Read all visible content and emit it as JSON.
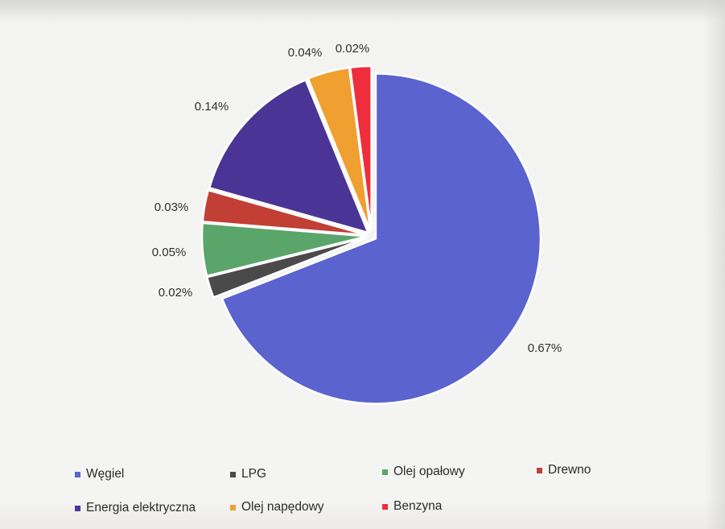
{
  "chart_data": {
    "type": "pie",
    "title": "",
    "categories": [
      "Węgiel",
      "LPG",
      "Olej opałowy",
      "Drewno",
      "Energia elektryczna",
      "Olej napędowy",
      "Benzyna"
    ],
    "values": [
      0.67,
      0.02,
      0.05,
      0.03,
      0.14,
      0.04,
      0.02
    ],
    "data_labels": [
      "0.67%",
      "0.02%",
      "0.05%",
      "0.03%",
      "0.14%",
      "0.04%",
      "0.02%"
    ],
    "colors": [
      "#5b63cf",
      "#4a4a4a",
      "#5aa56a",
      "#c23f35",
      "#4a3596",
      "#f0a030",
      "#ee2e3c"
    ],
    "legend_position": "bottom",
    "start_angle_deg": 90,
    "direction": "clockwise",
    "exploded": true
  },
  "legend": [
    {
      "label": "Węgiel",
      "color": "#5b63cf"
    },
    {
      "label": "LPG",
      "color": "#4a4a4a"
    },
    {
      "label": "Olej opałowy",
      "color": "#5aa56a"
    },
    {
      "label": "Drewno",
      "color": "#c23f35"
    },
    {
      "label": "Energia elektryczna",
      "color": "#4a3596"
    },
    {
      "label": "Olej napędowy",
      "color": "#f0a030"
    },
    {
      "label": "Benzyna",
      "color": "#ee2e3c"
    }
  ]
}
